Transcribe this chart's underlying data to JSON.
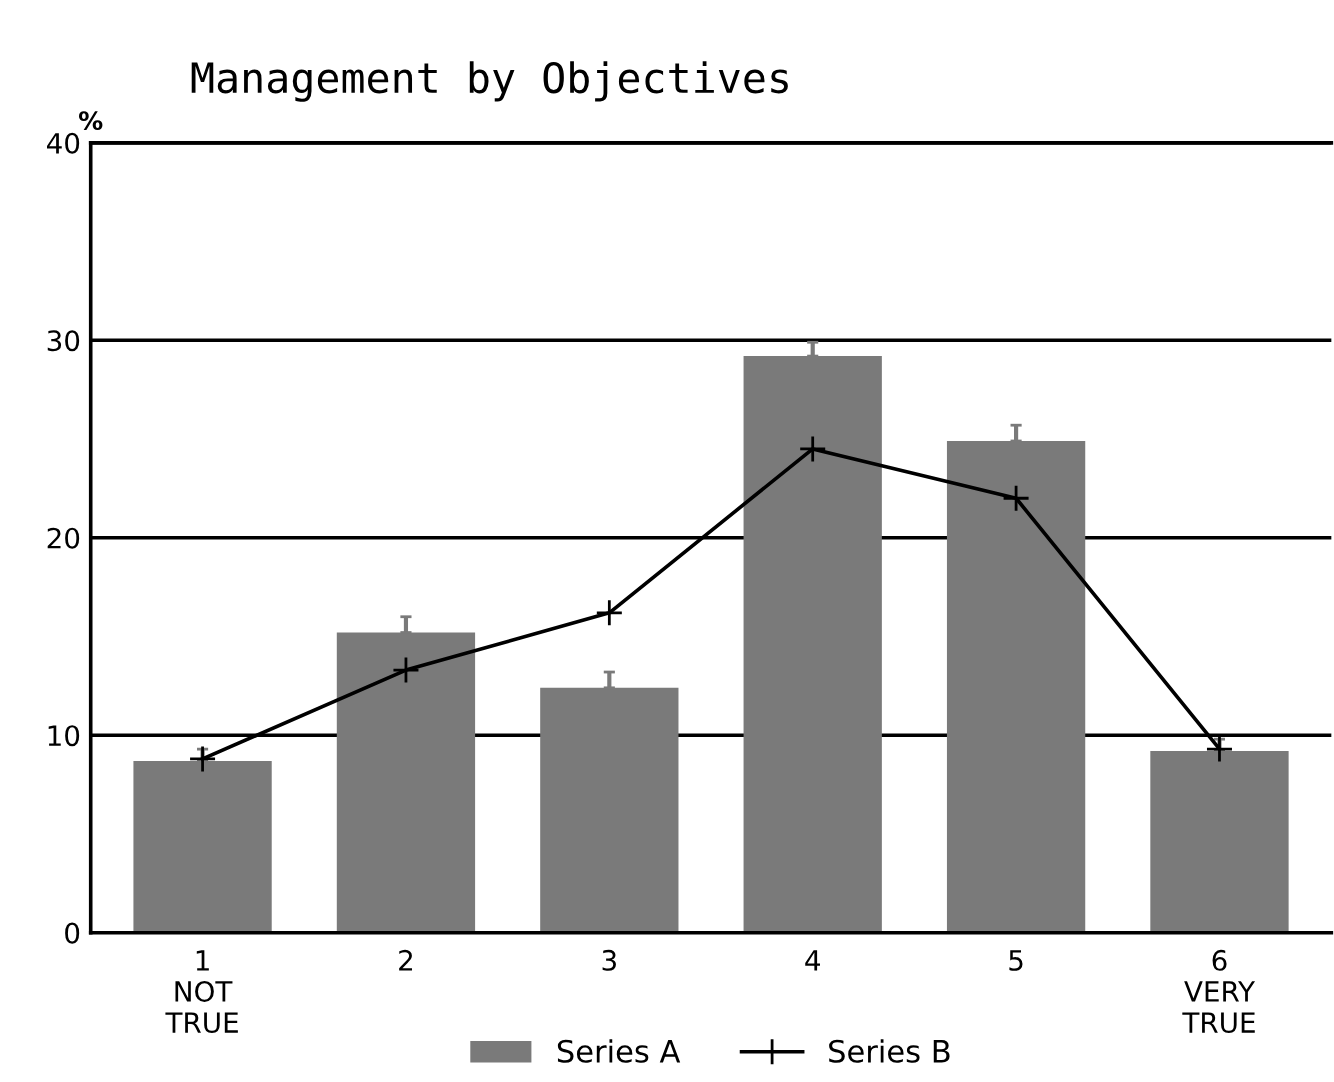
{
  "chart_data": {
    "type": "bar",
    "title": "Management by Objectives",
    "ylabel": "%",
    "categories": [
      "1\nNOT\nTRUE",
      "2",
      "3",
      "4",
      "5",
      "6\nVERY\nTRUE"
    ],
    "series": [
      {
        "name": "Series A",
        "color": "#7a7a7a",
        "values": [
          8.7,
          15.2,
          12.4,
          29.2,
          24.9,
          9.2
        ],
        "errors": [
          [
            8.7,
            9.3
          ],
          [
            15.2,
            16.0
          ],
          [
            12.4,
            13.2
          ],
          [
            29.2,
            29.9
          ],
          [
            24.9,
            25.7
          ],
          [
            9.2,
            9.8
          ]
        ]
      },
      {
        "name": "Series B",
        "type": "line",
        "color": "#000000",
        "values": [
          8.8,
          13.3,
          16.2,
          24.5,
          22.0,
          9.3
        ],
        "marker": "cross"
      }
    ],
    "ylim": [
      0,
      40
    ],
    "yticks": [
      0,
      10,
      20,
      30,
      40
    ],
    "grid": "y",
    "legend": "bottom"
  }
}
